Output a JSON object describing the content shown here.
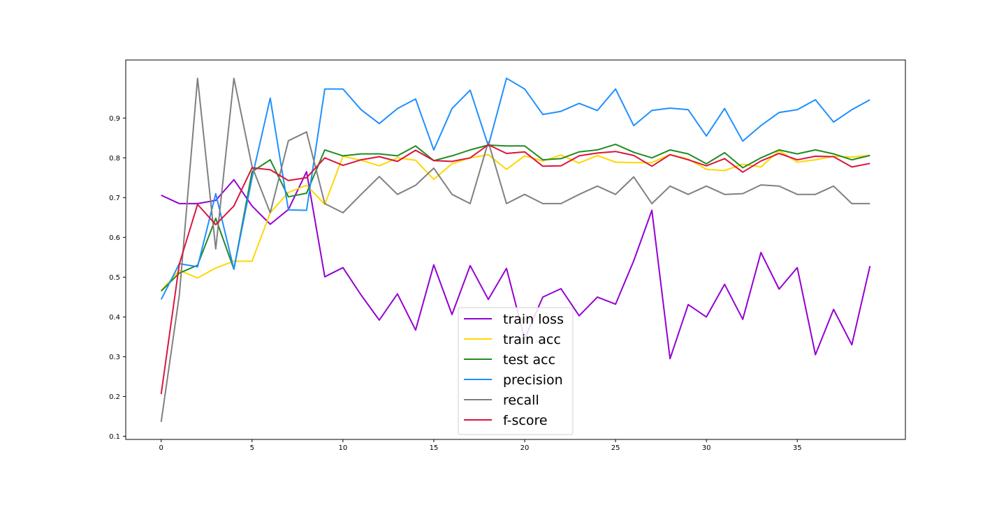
{
  "chart_data": {
    "type": "line",
    "title": "",
    "xlabel": "",
    "ylabel": "",
    "xlim": [
      -1.95,
      40.95
    ],
    "ylim": [
      0.092,
      1.046
    ],
    "xticks": [
      0,
      5,
      10,
      15,
      20,
      25,
      30,
      35
    ],
    "xtick_labels": [
      "0",
      "5",
      "10",
      "15",
      "20",
      "25",
      "30",
      "35"
    ],
    "yticks": [
      0.1,
      0.2,
      0.3,
      0.4,
      0.5,
      0.6,
      0.7,
      0.8,
      0.9
    ],
    "ytick_labels": [
      "0.1",
      "0.2",
      "0.3",
      "0.4",
      "0.5",
      "0.6",
      "0.7",
      "0.8",
      "0.9"
    ],
    "grid": false,
    "legend_position": "bottom-center",
    "x": [
      0,
      1,
      2,
      3,
      4,
      5,
      6,
      7,
      8,
      9,
      10,
      11,
      12,
      13,
      14,
      15,
      16,
      17,
      18,
      19,
      20,
      21,
      22,
      23,
      24,
      25,
      26,
      27,
      28,
      29,
      30,
      31,
      32,
      33,
      34,
      35,
      36,
      37,
      38,
      39
    ],
    "series": [
      {
        "name": "train loss",
        "color": "#9400D3",
        "values": [
          0.706,
          0.685,
          0.685,
          0.693,
          0.745,
          0.679,
          0.633,
          0.67,
          0.765,
          0.501,
          0.524,
          0.455,
          0.392,
          0.458,
          0.367,
          0.531,
          0.406,
          0.529,
          0.444,
          0.522,
          0.345,
          0.45,
          0.471,
          0.403,
          0.45,
          0.432,
          0.541,
          0.668,
          0.295,
          0.431,
          0.4,
          0.482,
          0.394,
          0.562,
          0.47,
          0.524,
          0.305,
          0.419,
          0.33,
          0.528
        ]
      },
      {
        "name": "train acc",
        "color": "#FFD700",
        "values": [
          0.466,
          0.517,
          0.498,
          0.523,
          0.54,
          0.54,
          0.662,
          0.713,
          0.731,
          0.683,
          0.804,
          0.794,
          0.78,
          0.8,
          0.794,
          0.746,
          0.785,
          0.8,
          0.808,
          0.771,
          0.805,
          0.792,
          0.807,
          0.787,
          0.806,
          0.789,
          0.788,
          0.788,
          0.808,
          0.797,
          0.771,
          0.768,
          0.784,
          0.777,
          0.818,
          0.789,
          0.795,
          0.804,
          0.802,
          0.806
        ]
      },
      {
        "name": "test acc",
        "color": "#228B22",
        "values": [
          0.465,
          0.51,
          0.53,
          0.648,
          0.52,
          0.765,
          0.795,
          0.702,
          0.711,
          0.82,
          0.805,
          0.81,
          0.81,
          0.805,
          0.83,
          0.793,
          0.805,
          0.82,
          0.832,
          0.83,
          0.83,
          0.795,
          0.798,
          0.815,
          0.82,
          0.834,
          0.814,
          0.8,
          0.82,
          0.81,
          0.785,
          0.813,
          0.775,
          0.8,
          0.82,
          0.81,
          0.82,
          0.81,
          0.795,
          0.806
        ]
      },
      {
        "name": "precision",
        "color": "#1E90FF",
        "values": [
          0.444,
          0.534,
          0.526,
          0.71,
          0.52,
          0.75,
          0.95,
          0.669,
          0.668,
          0.973,
          0.973,
          0.921,
          0.886,
          0.924,
          0.948,
          0.82,
          0.924,
          0.97,
          0.83,
          1.0,
          0.973,
          0.909,
          0.917,
          0.937,
          0.919,
          0.973,
          0.881,
          0.919,
          0.925,
          0.921,
          0.855,
          0.924,
          0.842,
          0.881,
          0.914,
          0.921,
          0.946,
          0.89,
          0.921,
          0.946
        ]
      },
      {
        "name": "recall",
        "color": "#808080",
        "values": [
          0.136,
          0.455,
          1.0,
          0.571,
          1.0,
          0.778,
          0.662,
          0.843,
          0.865,
          0.685,
          0.662,
          0.708,
          0.753,
          0.708,
          0.731,
          0.774,
          0.708,
          0.685,
          0.84,
          0.685,
          0.708,
          0.685,
          0.685,
          0.708,
          0.729,
          0.708,
          0.752,
          0.685,
          0.729,
          0.708,
          0.729,
          0.708,
          0.71,
          0.732,
          0.729,
          0.708,
          0.708,
          0.729,
          0.685,
          0.685
        ]
      },
      {
        "name": "f-score",
        "color": "#DC143C",
        "values": [
          0.206,
          0.533,
          0.683,
          0.632,
          0.679,
          0.775,
          0.77,
          0.743,
          0.75,
          0.8,
          0.781,
          0.795,
          0.803,
          0.791,
          0.819,
          0.793,
          0.791,
          0.8,
          0.833,
          0.811,
          0.815,
          0.779,
          0.78,
          0.805,
          0.812,
          0.816,
          0.806,
          0.779,
          0.808,
          0.795,
          0.78,
          0.798,
          0.764,
          0.792,
          0.811,
          0.795,
          0.804,
          0.803,
          0.777,
          0.786
        ]
      }
    ]
  }
}
